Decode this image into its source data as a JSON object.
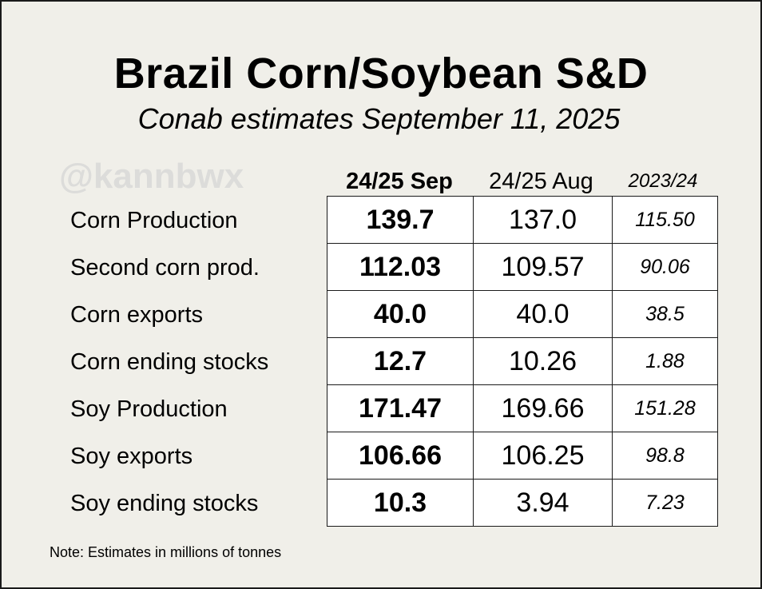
{
  "header": {
    "title": "Brazil Corn/Soybean S&D",
    "subtitle": "Conab estimates September 11, 2025",
    "watermark": "@kannbwx"
  },
  "table": {
    "columns": [
      "24/25 Sep",
      "24/25 Aug",
      "2023/24"
    ],
    "rows": [
      {
        "label": "Corn Production",
        "sep": "139.7",
        "aug": "137.0",
        "prev": "115.50"
      },
      {
        "label": "Second corn prod.",
        "sep": "112.03",
        "aug": "109.57",
        "prev": "90.06"
      },
      {
        "label": "Corn exports",
        "sep": "40.0",
        "aug": "40.0",
        "prev": "38.5"
      },
      {
        "label": "Corn ending stocks",
        "sep": "12.7",
        "aug": "10.26",
        "prev": "1.88"
      },
      {
        "label": "Soy Production",
        "sep": "171.47",
        "aug": "169.66",
        "prev": "151.28"
      },
      {
        "label": "Soy exports",
        "sep": "106.66",
        "aug": "106.25",
        "prev": "98.8"
      },
      {
        "label": "Soy ending stocks",
        "sep": "10.3",
        "aug": "3.94",
        "prev": "7.23"
      }
    ]
  },
  "note": "Note: Estimates in millions of tonnes"
}
